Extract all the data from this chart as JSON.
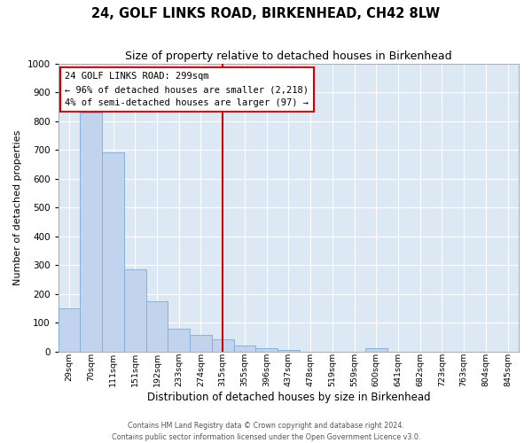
{
  "title": "24, GOLF LINKS ROAD, BIRKENHEAD, CH42 8LW",
  "subtitle": "Size of property relative to detached houses in Birkenhead",
  "xlabel": "Distribution of detached houses by size in Birkenhead",
  "ylabel": "Number of detached properties",
  "bar_color": "#c2d4ed",
  "bar_edge_color": "#7aadd4",
  "background_color": "#dde8f5",
  "grid_color": "#ffffff",
  "categories": [
    "29sqm",
    "70sqm",
    "111sqm",
    "151sqm",
    "192sqm",
    "233sqm",
    "274sqm",
    "315sqm",
    "355sqm",
    "396sqm",
    "437sqm",
    "478sqm",
    "519sqm",
    "559sqm",
    "600sqm",
    "641sqm",
    "682sqm",
    "723sqm",
    "763sqm",
    "804sqm",
    "845sqm"
  ],
  "values": [
    150,
    830,
    690,
    285,
    175,
    80,
    57,
    42,
    20,
    10,
    5,
    0,
    0,
    0,
    10,
    0,
    0,
    0,
    0,
    0,
    0
  ],
  "ylim": [
    0,
    1000
  ],
  "yticks": [
    0,
    100,
    200,
    300,
    400,
    500,
    600,
    700,
    800,
    900,
    1000
  ],
  "vline_idx": 7,
  "vline_color": "#cc0000",
  "annotation_text": "24 GOLF LINKS ROAD: 299sqm\n← 96% of detached houses are smaller (2,218)\n4% of semi-detached houses are larger (97) →",
  "annotation_box_edgecolor": "#cc0000",
  "footer_line1": "Contains HM Land Registry data © Crown copyright and database right 2024.",
  "footer_line2": "Contains public sector information licensed under the Open Government Licence v3.0."
}
